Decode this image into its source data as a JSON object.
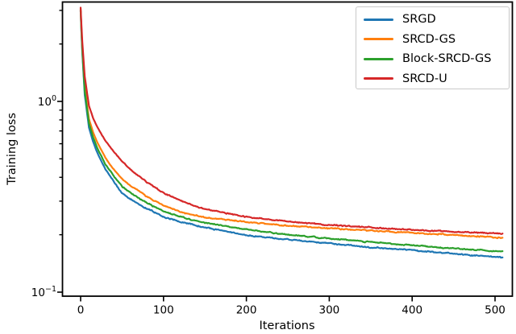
{
  "figure": {
    "title": "",
    "background": "#ffffff",
    "text_color": "#000000"
  },
  "legend": {
    "position": "upper-right",
    "entries": [
      {
        "label": "SRGD",
        "color": "#1f77b4"
      },
      {
        "label": "SRCD-GS",
        "color": "#ff7f0e"
      },
      {
        "label": "Block-SRCD-GS",
        "color": "#2ca02c"
      },
      {
        "label": "SRCD-U",
        "color": "#d62728"
      }
    ]
  },
  "chart_data": {
    "type": "line",
    "title": "",
    "xlabel": "Iterations",
    "ylabel": "Training loss",
    "x_scale": "linear",
    "y_scale": "log",
    "xlim": [
      -22,
      521
    ],
    "ylim": [
      0.095,
      3.32
    ],
    "grid": false,
    "x_ticks": [
      0,
      100,
      200,
      300,
      400,
      500
    ],
    "y_major_ticks": [
      {
        "value": 1.0,
        "base": "10",
        "exp": "0"
      },
      {
        "value": 0.1,
        "base": "10",
        "exp": "−1"
      }
    ],
    "y_minor_ticks": [
      3,
      2,
      0.9,
      0.8,
      0.7,
      0.6,
      0.5,
      0.4,
      0.3,
      0.2
    ],
    "iterations_range": [
      0,
      509
    ],
    "series": [
      {
        "name": "SRGD",
        "color": "#1f77b4",
        "keypoints": [
          [
            0,
            3.0
          ],
          [
            2,
            1.8
          ],
          [
            5,
            1.08
          ],
          [
            10,
            0.73
          ],
          [
            15,
            0.615
          ],
          [
            20,
            0.54
          ],
          [
            30,
            0.44
          ],
          [
            40,
            0.38
          ],
          [
            50,
            0.33
          ],
          [
            60,
            0.308
          ],
          [
            80,
            0.274
          ],
          [
            100,
            0.248
          ],
          [
            125,
            0.231
          ],
          [
            150,
            0.218
          ],
          [
            200,
            0.199
          ],
          [
            250,
            0.189
          ],
          [
            300,
            0.18
          ],
          [
            350,
            0.172
          ],
          [
            400,
            0.166
          ],
          [
            450,
            0.159
          ],
          [
            509,
            0.152
          ]
        ]
      },
      {
        "name": "SRCD-GS",
        "color": "#ff7f0e",
        "keypoints": [
          [
            0,
            3.05
          ],
          [
            2,
            1.9
          ],
          [
            5,
            1.18
          ],
          [
            10,
            0.81
          ],
          [
            15,
            0.69
          ],
          [
            20,
            0.61
          ],
          [
            30,
            0.505
          ],
          [
            40,
            0.44
          ],
          [
            50,
            0.392
          ],
          [
            60,
            0.36
          ],
          [
            80,
            0.318
          ],
          [
            100,
            0.284
          ],
          [
            125,
            0.261
          ],
          [
            150,
            0.247
          ],
          [
            200,
            0.233
          ],
          [
            250,
            0.223
          ],
          [
            300,
            0.216
          ],
          [
            350,
            0.21
          ],
          [
            400,
            0.205
          ],
          [
            450,
            0.199
          ],
          [
            509,
            0.193
          ]
        ]
      },
      {
        "name": "Block-SRCD-GS",
        "color": "#2ca02c",
        "keypoints": [
          [
            0,
            3.0
          ],
          [
            2,
            1.85
          ],
          [
            5,
            1.13
          ],
          [
            10,
            0.77
          ],
          [
            15,
            0.65
          ],
          [
            20,
            0.57
          ],
          [
            30,
            0.468
          ],
          [
            40,
            0.406
          ],
          [
            50,
            0.358
          ],
          [
            60,
            0.332
          ],
          [
            80,
            0.294
          ],
          [
            100,
            0.265
          ],
          [
            125,
            0.245
          ],
          [
            150,
            0.231
          ],
          [
            200,
            0.213
          ],
          [
            250,
            0.2
          ],
          [
            300,
            0.191
          ],
          [
            350,
            0.183
          ],
          [
            400,
            0.176
          ],
          [
            450,
            0.169
          ],
          [
            509,
            0.163
          ]
        ]
      },
      {
        "name": "SRCD-U",
        "color": "#d62728",
        "keypoints": [
          [
            0,
            3.1
          ],
          [
            2,
            2.05
          ],
          [
            5,
            1.35
          ],
          [
            10,
            0.95
          ],
          [
            15,
            0.82
          ],
          [
            20,
            0.735
          ],
          [
            30,
            0.62
          ],
          [
            40,
            0.545
          ],
          [
            50,
            0.485
          ],
          [
            60,
            0.44
          ],
          [
            80,
            0.378
          ],
          [
            100,
            0.331
          ],
          [
            125,
            0.296
          ],
          [
            150,
            0.272
          ],
          [
            200,
            0.248
          ],
          [
            250,
            0.235
          ],
          [
            300,
            0.225
          ],
          [
            350,
            0.218
          ],
          [
            400,
            0.212
          ],
          [
            450,
            0.207
          ],
          [
            509,
            0.203
          ]
        ]
      }
    ]
  }
}
